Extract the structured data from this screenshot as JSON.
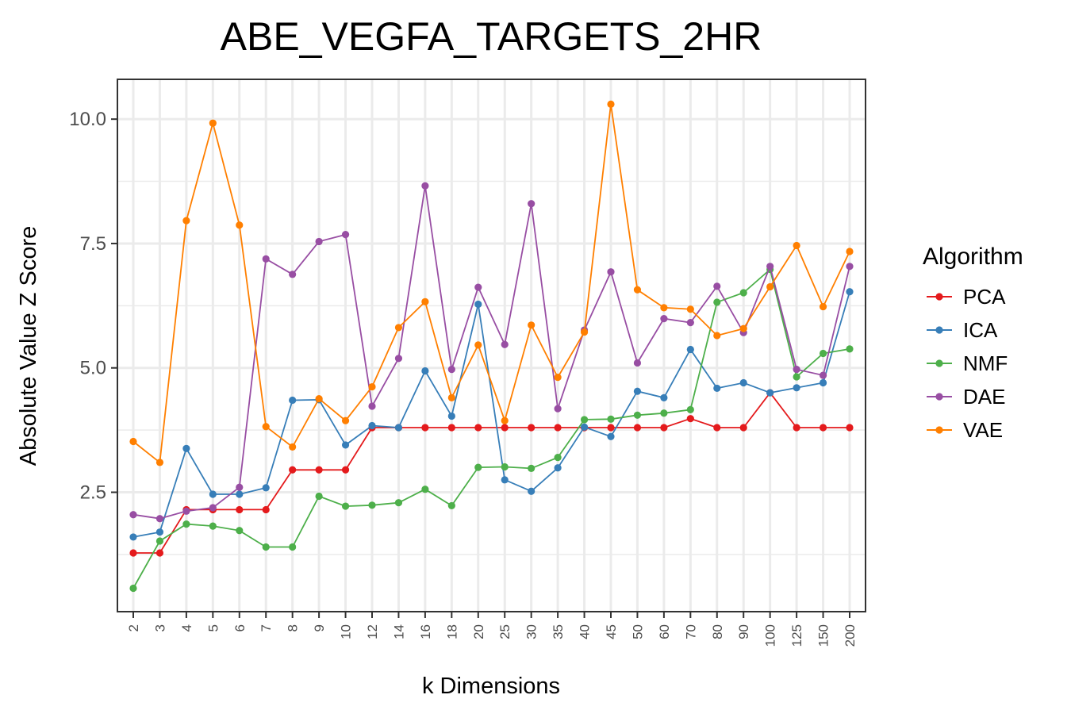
{
  "chart_data": {
    "type": "line",
    "title": "ABE_VEGFA_TARGETS_2HR",
    "xlabel": "k Dimensions",
    "ylabel": "Absolute Value Z Score",
    "ylim": [
      0.1,
      10.8
    ],
    "yticks": [
      "2.5",
      "5.0",
      "7.5",
      "10.0"
    ],
    "yminor": [
      1.25,
      3.75,
      6.25,
      8.75
    ],
    "grid": true,
    "legend": {
      "title": "Algorithm",
      "placement": "right"
    },
    "categories": [
      "2",
      "3",
      "4",
      "5",
      "6",
      "7",
      "8",
      "9",
      "10",
      "12",
      "14",
      "16",
      "18",
      "20",
      "25",
      "30",
      "35",
      "40",
      "45",
      "50",
      "60",
      "70",
      "80",
      "90",
      "100",
      "125",
      "150",
      "200"
    ],
    "series": [
      {
        "name": "PCA",
        "color": "#e41a1c",
        "values": [
          1.28,
          1.28,
          2.15,
          2.15,
          2.15,
          2.15,
          2.95,
          2.95,
          2.95,
          3.8,
          3.8,
          3.8,
          3.8,
          3.8,
          3.8,
          3.8,
          3.8,
          3.8,
          3.8,
          3.8,
          3.8,
          3.98,
          3.8,
          3.8,
          4.5,
          3.8,
          3.8,
          3.8
        ]
      },
      {
        "name": "ICA",
        "color": "#377eb8",
        "values": [
          1.6,
          1.7,
          3.38,
          2.46,
          2.46,
          2.59,
          4.35,
          4.36,
          3.45,
          3.84,
          3.8,
          4.94,
          4.03,
          6.28,
          2.75,
          2.52,
          2.99,
          3.81,
          3.62,
          4.53,
          4.4,
          5.37,
          4.59,
          4.7,
          4.5,
          4.6,
          4.7,
          6.53
        ]
      },
      {
        "name": "NMF",
        "color": "#4daf4a",
        "values": [
          0.57,
          1.52,
          1.86,
          1.82,
          1.73,
          1.4,
          1.4,
          2.42,
          2.22,
          2.24,
          2.29,
          2.56,
          2.23,
          3.0,
          3.01,
          2.98,
          3.2,
          3.96,
          3.97,
          4.05,
          4.09,
          4.16,
          6.32,
          6.51,
          6.98,
          4.82,
          5.29,
          5.38
        ]
      },
      {
        "name": "DAE",
        "color": "#984ea3",
        "values": [
          2.05,
          1.97,
          2.12,
          2.19,
          2.6,
          7.19,
          6.88,
          7.54,
          7.68,
          4.23,
          5.19,
          8.66,
          4.97,
          6.62,
          5.47,
          8.3,
          4.18,
          5.76,
          6.93,
          5.1,
          5.99,
          5.91,
          6.64,
          5.71,
          7.04,
          4.97,
          4.85,
          7.04
        ]
      },
      {
        "name": "VAE",
        "color": "#ff7f00",
        "values": [
          3.52,
          3.1,
          7.96,
          9.92,
          7.87,
          3.82,
          3.41,
          4.38,
          3.94,
          4.62,
          5.81,
          6.33,
          4.4,
          5.46,
          3.94,
          5.86,
          4.81,
          5.72,
          10.3,
          6.57,
          6.21,
          6.18,
          5.65,
          5.79,
          6.63,
          7.46,
          6.23,
          7.34
        ]
      }
    ]
  }
}
